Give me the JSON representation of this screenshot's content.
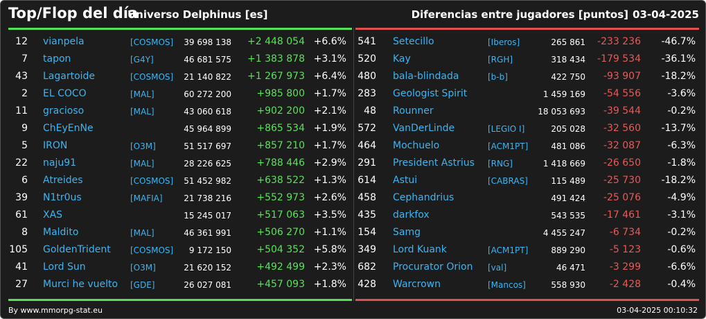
{
  "header": {
    "title": "Top/Flop del día",
    "server": "Universo Delphinus [es]",
    "subtitle": "Diferencias entre jugadores [puntos]",
    "date": "03-04-2025"
  },
  "colors": {
    "top": "#55e055",
    "flop": "#e05050",
    "link": "#3fb4f0"
  },
  "top": [
    {
      "rank": "12",
      "name": "vianpela",
      "ally": "[COSMOS]",
      "points": "39 698 138",
      "diff": "+2 448 054",
      "pct": "+6.6%"
    },
    {
      "rank": "7",
      "name": "tapon",
      "ally": "[G4Y]",
      "points": "46 681 575",
      "diff": "+1 383 878",
      "pct": "+3.1%"
    },
    {
      "rank": "43",
      "name": "Lagartoide",
      "ally": "[COSMOS]",
      "points": "21 140 822",
      "diff": "+1 267 973",
      "pct": "+6.4%"
    },
    {
      "rank": "2",
      "name": "EL COCO",
      "ally": "[MAL]",
      "points": "60 272 200",
      "diff": "+985 800",
      "pct": "+1.7%"
    },
    {
      "rank": "11",
      "name": "gracioso",
      "ally": "[MAL]",
      "points": "43 060 618",
      "diff": "+902 200",
      "pct": "+2.1%"
    },
    {
      "rank": "9",
      "name": "ChEyEnNe",
      "ally": "",
      "points": "45 964 899",
      "diff": "+865 534",
      "pct": "+1.9%"
    },
    {
      "rank": "5",
      "name": "IRON",
      "ally": "[O3M]",
      "points": "51 517 697",
      "diff": "+857 210",
      "pct": "+1.7%"
    },
    {
      "rank": "22",
      "name": "naju91",
      "ally": "[MAL]",
      "points": "28 226 625",
      "diff": "+788 446",
      "pct": "+2.9%"
    },
    {
      "rank": "6",
      "name": "Atreides",
      "ally": "[COSMOS]",
      "points": "51 452 982",
      "diff": "+638 522",
      "pct": "+1.3%"
    },
    {
      "rank": "39",
      "name": "N1tr0us",
      "ally": "[MAFIA]",
      "points": "21 738 216",
      "diff": "+552 973",
      "pct": "+2.6%"
    },
    {
      "rank": "61",
      "name": "XAS",
      "ally": "",
      "points": "15 245 017",
      "diff": "+517 063",
      "pct": "+3.5%"
    },
    {
      "rank": "8",
      "name": "Maldito",
      "ally": "[MAL]",
      "points": "46 361 991",
      "diff": "+506 270",
      "pct": "+1.1%"
    },
    {
      "rank": "105",
      "name": "GoldenTrident",
      "ally": "[COSMOS]",
      "points": "9 172 150",
      "diff": "+504 352",
      "pct": "+5.8%"
    },
    {
      "rank": "41",
      "name": "Lord Sun",
      "ally": "[O3M]",
      "points": "21 620 152",
      "diff": "+492 499",
      "pct": "+2.3%"
    },
    {
      "rank": "27",
      "name": "Murci he vuelto",
      "ally": "[GDE]",
      "points": "26 027 081",
      "diff": "+457 093",
      "pct": "+1.8%"
    }
  ],
  "flop": [
    {
      "rank": "541",
      "name": "Setecillo",
      "ally": "[Iberos]",
      "points": "265 861",
      "diff": "-233 236",
      "pct": "-46.7%"
    },
    {
      "rank": "520",
      "name": "Kay",
      "ally": "[RGH]",
      "points": "318 434",
      "diff": "-179 534",
      "pct": "-36.1%"
    },
    {
      "rank": "480",
      "name": "bala-blindada",
      "ally": "[b-b]",
      "points": "422 750",
      "diff": "-93 907",
      "pct": "-18.2%"
    },
    {
      "rank": "283",
      "name": "Geologist Spirit",
      "ally": "",
      "points": "1 459 169",
      "diff": "-54 556",
      "pct": "-3.6%"
    },
    {
      "rank": "48",
      "name": "Rounner",
      "ally": "",
      "points": "18 053 693",
      "diff": "-39 544",
      "pct": "-0.2%"
    },
    {
      "rank": "572",
      "name": "VanDerLinde",
      "ally": "[LEGIO I]",
      "points": "205 028",
      "diff": "-32 560",
      "pct": "-13.7%"
    },
    {
      "rank": "464",
      "name": "Mochuelo",
      "ally": "[ACM1PT]",
      "points": "481 086",
      "diff": "-32 087",
      "pct": "-6.3%"
    },
    {
      "rank": "291",
      "name": "President Astrius",
      "ally": "[RNG]",
      "points": "1 418 669",
      "diff": "-26 650",
      "pct": "-1.8%"
    },
    {
      "rank": "614",
      "name": "Astui",
      "ally": "[CABRAS]",
      "points": "115 489",
      "diff": "-25 730",
      "pct": "-18.2%"
    },
    {
      "rank": "458",
      "name": "Cephandrius",
      "ally": "",
      "points": "491 424",
      "diff": "-25 076",
      "pct": "-4.9%"
    },
    {
      "rank": "435",
      "name": "darkfox",
      "ally": "",
      "points": "543 535",
      "diff": "-17 461",
      "pct": "-3.1%"
    },
    {
      "rank": "154",
      "name": "Samg",
      "ally": "",
      "points": "4 455 247",
      "diff": "-6 734",
      "pct": "-0.2%"
    },
    {
      "rank": "349",
      "name": "Lord Kuank",
      "ally": "[ACM1PT]",
      "points": "889 290",
      "diff": "-5 123",
      "pct": "-0.6%"
    },
    {
      "rank": "682",
      "name": "Procurator Orion",
      "ally": "[val]",
      "points": "46 471",
      "diff": "-3 299",
      "pct": "-6.6%"
    },
    {
      "rank": "428",
      "name": "Warcrown",
      "ally": "[Mancos]",
      "points": "558 930",
      "diff": "-2 428",
      "pct": "-0.4%"
    }
  ],
  "footer": {
    "source": "By www.mmorpg-stat.eu",
    "timestamp": "03-04-2025 00:10:32"
  }
}
